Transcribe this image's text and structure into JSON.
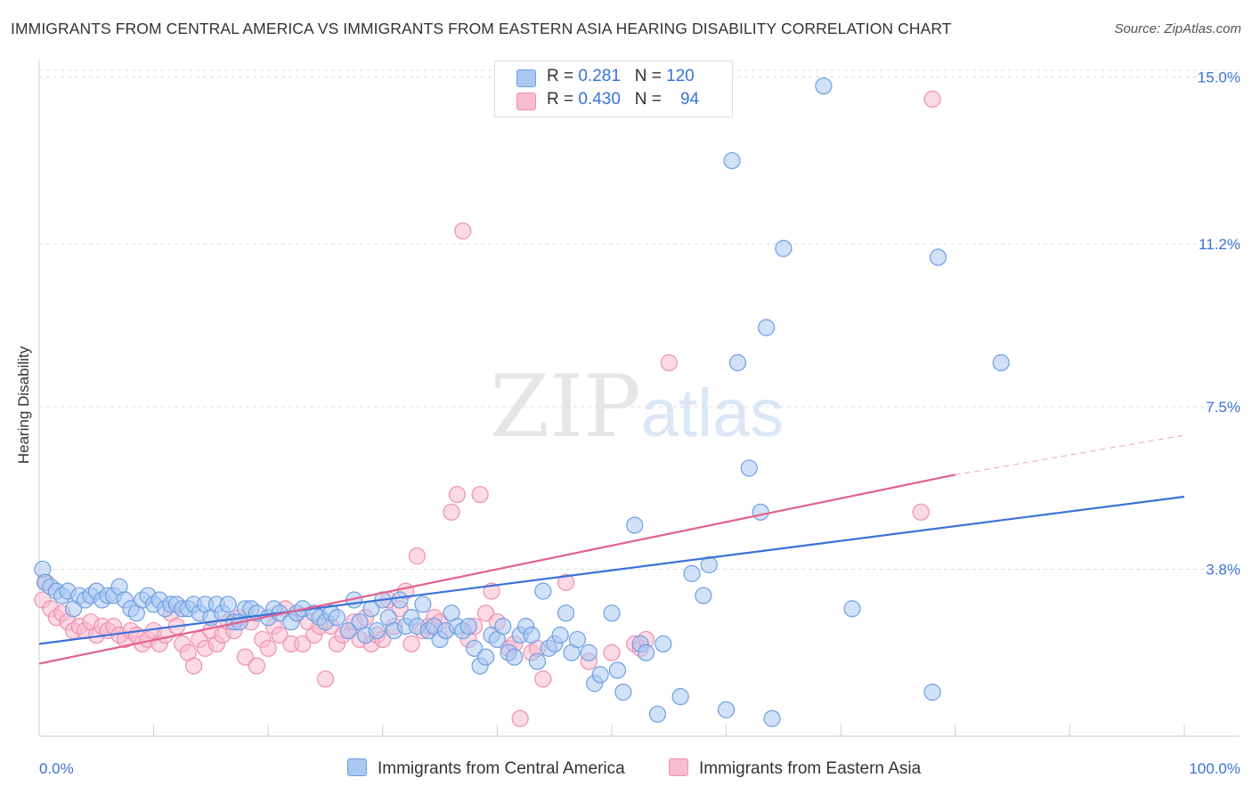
{
  "title": "IMMIGRANTS FROM CENTRAL AMERICA VS IMMIGRANTS FROM EASTERN ASIA HEARING DISABILITY CORRELATION CHART",
  "source": "Source: ZipAtlas.com",
  "watermark": {
    "zip": "ZIP",
    "atlas": "atlas"
  },
  "colors": {
    "blue_fill": "#a9c8f2",
    "blue_stroke": "#6f9fe0",
    "blue_line": "#3a72d8",
    "pink_fill": "#f7bcd0",
    "pink_stroke": "#ee8fb0",
    "pink_line": "#e4608e",
    "tick_label": "#3a72d8"
  },
  "legend": {
    "rows": [
      {
        "r_label": "R = ",
        "r_value": "0.281",
        "n_label": "N = ",
        "n_value": "120"
      },
      {
        "r_label": "R = ",
        "r_value": "0.430",
        "n_label": "N = ",
        "n_value": "94"
      }
    ]
  },
  "chart_data": {
    "type": "scatter",
    "title": "IMMIGRANTS FROM CENTRAL AMERICA VS IMMIGRANTS FROM EASTERN ASIA HEARING DISABILITY CORRELATION CHART",
    "xlabel": "",
    "ylabel": "Hearing Disability",
    "x_unit": "%",
    "y_unit": "%",
    "xlim": [
      0,
      100
    ],
    "ylim": [
      0,
      15.5
    ],
    "x_tick_labels": [
      "0.0%",
      "100.0%"
    ],
    "y_ticks": [
      3.8,
      7.5,
      11.2,
      15.0
    ],
    "y_tick_labels": [
      "3.8%",
      "7.5%",
      "11.2%",
      "15.0%"
    ],
    "grid": true,
    "legend_position": "top-center",
    "series": [
      {
        "name": "Immigrants from Central America",
        "color": "#6f9fe0",
        "R": 0.281,
        "N": 120,
        "trend": {
          "x": [
            0,
            100
          ],
          "y": [
            2.1,
            5.45
          ]
        },
        "points": [
          [
            0.3,
            3.8
          ],
          [
            0.5,
            3.5
          ],
          [
            1,
            3.4
          ],
          [
            1.5,
            3.3
          ],
          [
            2,
            3.2
          ],
          [
            2.5,
            3.3
          ],
          [
            3,
            2.9
          ],
          [
            3.5,
            3.2
          ],
          [
            4,
            3.1
          ],
          [
            4.5,
            3.2
          ],
          [
            5,
            3.3
          ],
          [
            5.5,
            3.1
          ],
          [
            6,
            3.2
          ],
          [
            6.5,
            3.2
          ],
          [
            7,
            3.4
          ],
          [
            7.5,
            3.1
          ],
          [
            8,
            2.9
          ],
          [
            8.5,
            2.8
          ],
          [
            9,
            3.1
          ],
          [
            9.5,
            3.2
          ],
          [
            10,
            3.0
          ],
          [
            10.5,
            3.1
          ],
          [
            11,
            2.9
          ],
          [
            11.5,
            3.0
          ],
          [
            12,
            3.0
          ],
          [
            12.5,
            2.9
          ],
          [
            13,
            2.9
          ],
          [
            13.5,
            3.0
          ],
          [
            14,
            2.8
          ],
          [
            14.5,
            3.0
          ],
          [
            15,
            2.7
          ],
          [
            15.5,
            3.0
          ],
          [
            16,
            2.8
          ],
          [
            16.5,
            3.0
          ],
          [
            17,
            2.6
          ],
          [
            17.5,
            2.6
          ],
          [
            18,
            2.9
          ],
          [
            18.5,
            2.9
          ],
          [
            19,
            2.8
          ],
          [
            20,
            2.7
          ],
          [
            20.5,
            2.9
          ],
          [
            21,
            2.8
          ],
          [
            22,
            2.6
          ],
          [
            22.5,
            2.8
          ],
          [
            23,
            2.9
          ],
          [
            24,
            2.8
          ],
          [
            24.5,
            2.7
          ],
          [
            25,
            2.6
          ],
          [
            25.5,
            2.8
          ],
          [
            26,
            2.7
          ],
          [
            27,
            2.4
          ],
          [
            27.5,
            3.1
          ],
          [
            28,
            2.6
          ],
          [
            28.5,
            2.3
          ],
          [
            29,
            2.9
          ],
          [
            29.5,
            2.4
          ],
          [
            30,
            3.1
          ],
          [
            30.5,
            2.7
          ],
          [
            31,
            2.4
          ],
          [
            31.5,
            3.1
          ],
          [
            32,
            2.5
          ],
          [
            32.5,
            2.7
          ],
          [
            33,
            2.5
          ],
          [
            33.5,
            3.0
          ],
          [
            34,
            2.4
          ],
          [
            34.5,
            2.5
          ],
          [
            35,
            2.2
          ],
          [
            35.5,
            2.4
          ],
          [
            36,
            2.8
          ],
          [
            36.5,
            2.5
          ],
          [
            37,
            2.4
          ],
          [
            37.5,
            2.5
          ],
          [
            38,
            2.0
          ],
          [
            38.5,
            1.6
          ],
          [
            39,
            1.8
          ],
          [
            39.5,
            2.3
          ],
          [
            40,
            2.2
          ],
          [
            40.5,
            2.5
          ],
          [
            41,
            1.9
          ],
          [
            41.5,
            1.8
          ],
          [
            42,
            2.3
          ],
          [
            42.5,
            2.5
          ],
          [
            43,
            2.3
          ],
          [
            43.5,
            1.7
          ],
          [
            44,
            3.3
          ],
          [
            44.5,
            2.0
          ],
          [
            45,
            2.1
          ],
          [
            45.5,
            2.3
          ],
          [
            46,
            2.8
          ],
          [
            46.5,
            1.9
          ],
          [
            47,
            2.2
          ],
          [
            48,
            1.9
          ],
          [
            48.5,
            1.2
          ],
          [
            49,
            1.4
          ],
          [
            50,
            2.8
          ],
          [
            50.5,
            1.5
          ],
          [
            51,
            1.0
          ],
          [
            52,
            4.8
          ],
          [
            52.5,
            2.1
          ],
          [
            53,
            1.9
          ],
          [
            54,
            0.5
          ],
          [
            54.5,
            2.1
          ],
          [
            56,
            0.9
          ],
          [
            57,
            3.7
          ],
          [
            58,
            3.2
          ],
          [
            58.5,
            3.9
          ],
          [
            60,
            0.6
          ],
          [
            60.5,
            13.1
          ],
          [
            61,
            8.5
          ],
          [
            62,
            6.1
          ],
          [
            63,
            5.1
          ],
          [
            63.5,
            9.3
          ],
          [
            64,
            0.4
          ],
          [
            65,
            11.1
          ],
          [
            68.5,
            14.8
          ],
          [
            71,
            2.9
          ],
          [
            78,
            1.0
          ],
          [
            78.5,
            10.9
          ],
          [
            84,
            8.5
          ]
        ]
      },
      {
        "name": "Immigrants from Eastern Asia",
        "color": "#ee8fb0",
        "R": 0.43,
        "N": 94,
        "trend": {
          "x": [
            0,
            80
          ],
          "y": [
            1.65,
            5.95
          ]
        },
        "trend_dashed": {
          "x": [
            80,
            100
          ],
          "y": [
            5.95,
            6.85
          ]
        },
        "points": [
          [
            0.3,
            3.1
          ],
          [
            0.6,
            3.5
          ],
          [
            1,
            2.9
          ],
          [
            1.5,
            2.7
          ],
          [
            2,
            2.8
          ],
          [
            2.5,
            2.6
          ],
          [
            3,
            2.4
          ],
          [
            3.5,
            2.5
          ],
          [
            4,
            2.4
          ],
          [
            4.5,
            2.6
          ],
          [
            5,
            2.3
          ],
          [
            5.5,
            2.5
          ],
          [
            6,
            2.4
          ],
          [
            6.5,
            2.5
          ],
          [
            7,
            2.3
          ],
          [
            7.5,
            2.2
          ],
          [
            8,
            2.4
          ],
          [
            8.5,
            2.3
          ],
          [
            9,
            2.1
          ],
          [
            9.5,
            2.2
          ],
          [
            10,
            2.4
          ],
          [
            10.5,
            2.1
          ],
          [
            11,
            2.3
          ],
          [
            11.5,
            2.8
          ],
          [
            12,
            2.5
          ],
          [
            12.5,
            2.1
          ],
          [
            13,
            1.9
          ],
          [
            13.5,
            1.6
          ],
          [
            14,
            2.2
          ],
          [
            14.5,
            2.0
          ],
          [
            15,
            2.4
          ],
          [
            15.5,
            2.1
          ],
          [
            16,
            2.3
          ],
          [
            16.5,
            2.6
          ],
          [
            17,
            2.4
          ],
          [
            17.5,
            2.7
          ],
          [
            18,
            1.8
          ],
          [
            18.5,
            2.6
          ],
          [
            19,
            1.6
          ],
          [
            19.5,
            2.2
          ],
          [
            20,
            2.0
          ],
          [
            20.5,
            2.5
          ],
          [
            21,
            2.3
          ],
          [
            21.5,
            2.9
          ],
          [
            22,
            2.1
          ],
          [
            22.5,
            2.8
          ],
          [
            23,
            2.1
          ],
          [
            23.5,
            2.6
          ],
          [
            24,
            2.3
          ],
          [
            24.5,
            2.5
          ],
          [
            25,
            1.3
          ],
          [
            25.5,
            2.5
          ],
          [
            26,
            2.1
          ],
          [
            26.5,
            2.3
          ],
          [
            27,
            2.4
          ],
          [
            27.5,
            2.6
          ],
          [
            28,
            2.2
          ],
          [
            28.5,
            2.7
          ],
          [
            29,
            2.1
          ],
          [
            29.5,
            2.3
          ],
          [
            30,
            2.2
          ],
          [
            30.5,
            3.1
          ],
          [
            31,
            2.5
          ],
          [
            31.5,
            2.9
          ],
          [
            32,
            3.3
          ],
          [
            32.5,
            2.1
          ],
          [
            33,
            4.1
          ],
          [
            33.5,
            2.4
          ],
          [
            34,
            2.5
          ],
          [
            34.5,
            2.7
          ],
          [
            35,
            2.6
          ],
          [
            35.5,
            2.4
          ],
          [
            36,
            5.1
          ],
          [
            36.5,
            5.5
          ],
          [
            37,
            11.5
          ],
          [
            37.5,
            2.2
          ],
          [
            38,
            2.5
          ],
          [
            38.5,
            5.5
          ],
          [
            39,
            2.8
          ],
          [
            39.5,
            3.3
          ],
          [
            40,
            2.6
          ],
          [
            41,
            2.0
          ],
          [
            41.5,
            2.1
          ],
          [
            42,
            0.4
          ],
          [
            43,
            1.9
          ],
          [
            43.5,
            2.0
          ],
          [
            44,
            1.3
          ],
          [
            46,
            3.5
          ],
          [
            48,
            1.7
          ],
          [
            50,
            1.9
          ],
          [
            52,
            2.1
          ],
          [
            52.5,
            2.0
          ],
          [
            53,
            2.2
          ],
          [
            55,
            8.5
          ],
          [
            77,
            5.1
          ],
          [
            78,
            14.5
          ]
        ]
      }
    ]
  },
  "bottom_legend": [
    {
      "label": "Immigrants from Central America"
    },
    {
      "label": "Immigrants from Eastern Asia"
    }
  ]
}
